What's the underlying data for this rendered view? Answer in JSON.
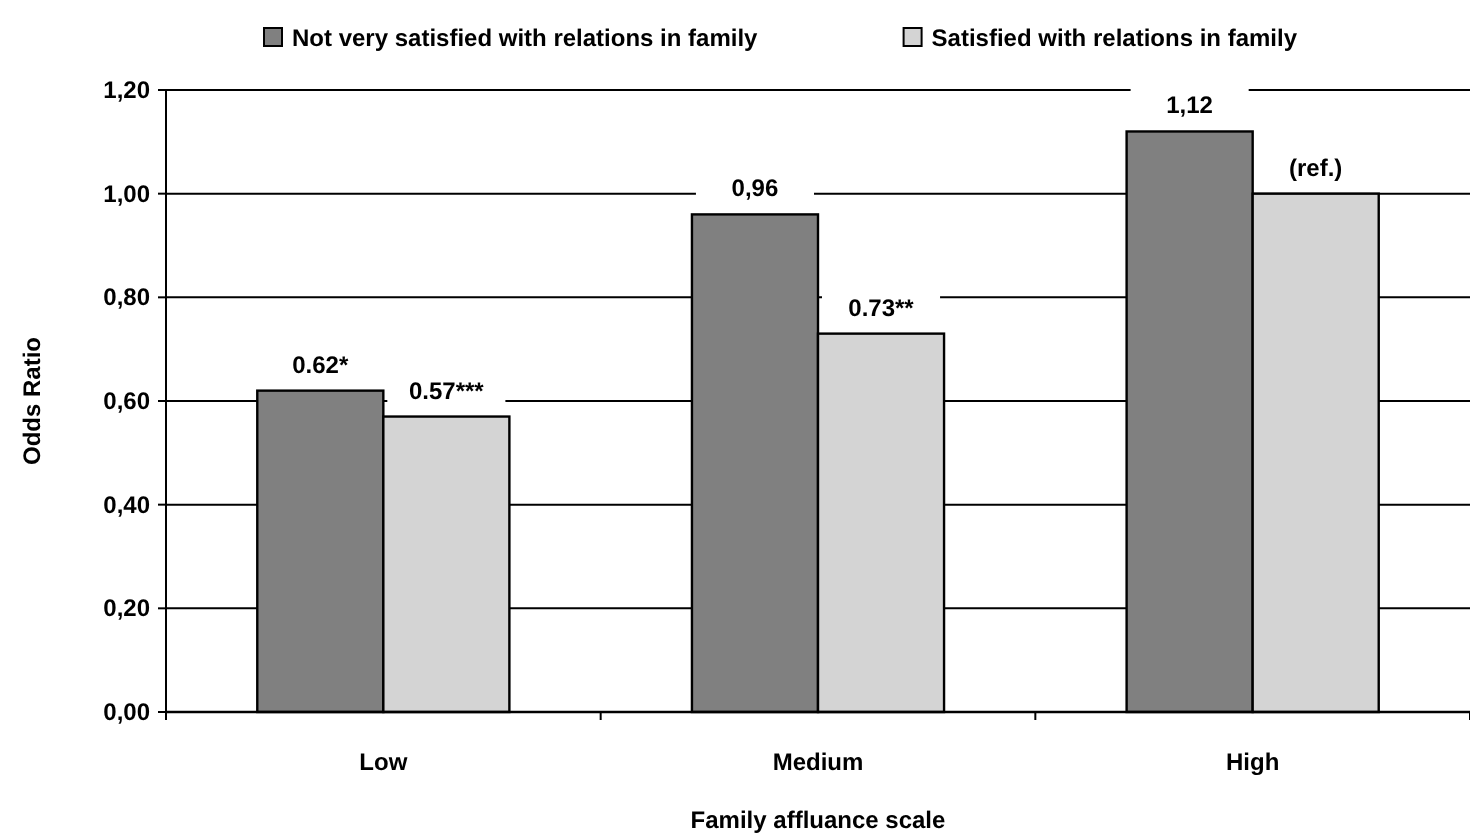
{
  "chart_data": {
    "type": "bar",
    "xlabel": "Family affluance scale",
    "ylabel": "Odds Ratio",
    "categories": [
      "Low",
      "Medium",
      "High"
    ],
    "series": [
      {
        "name": "Not very satisfied with relations in family",
        "color": "#808080",
        "values": [
          0.62,
          0.96,
          1.12
        ],
        "value_labels": [
          "0.62*",
          "0,96",
          "1,12"
        ]
      },
      {
        "name": "Satisfied with relations in family",
        "color": "#d4d4d4",
        "values": [
          0.57,
          0.73,
          1.0
        ],
        "value_labels": [
          "0.57***",
          "0.73**",
          "(ref.)"
        ]
      }
    ],
    "ylim": [
      0,
      1.2
    ],
    "yticks": [
      {
        "value": 0,
        "label": "0,00"
      },
      {
        "value": 0.2,
        "label": "0,20"
      },
      {
        "value": 0.4,
        "label": "0,40"
      },
      {
        "value": 0.6,
        "label": "0,60"
      },
      {
        "value": 0.8,
        "label": "0,80"
      },
      {
        "value": 1,
        "label": "1,00"
      },
      {
        "value": 1.2,
        "label": "1,20"
      }
    ],
    "grid": "y",
    "legend": "top"
  }
}
